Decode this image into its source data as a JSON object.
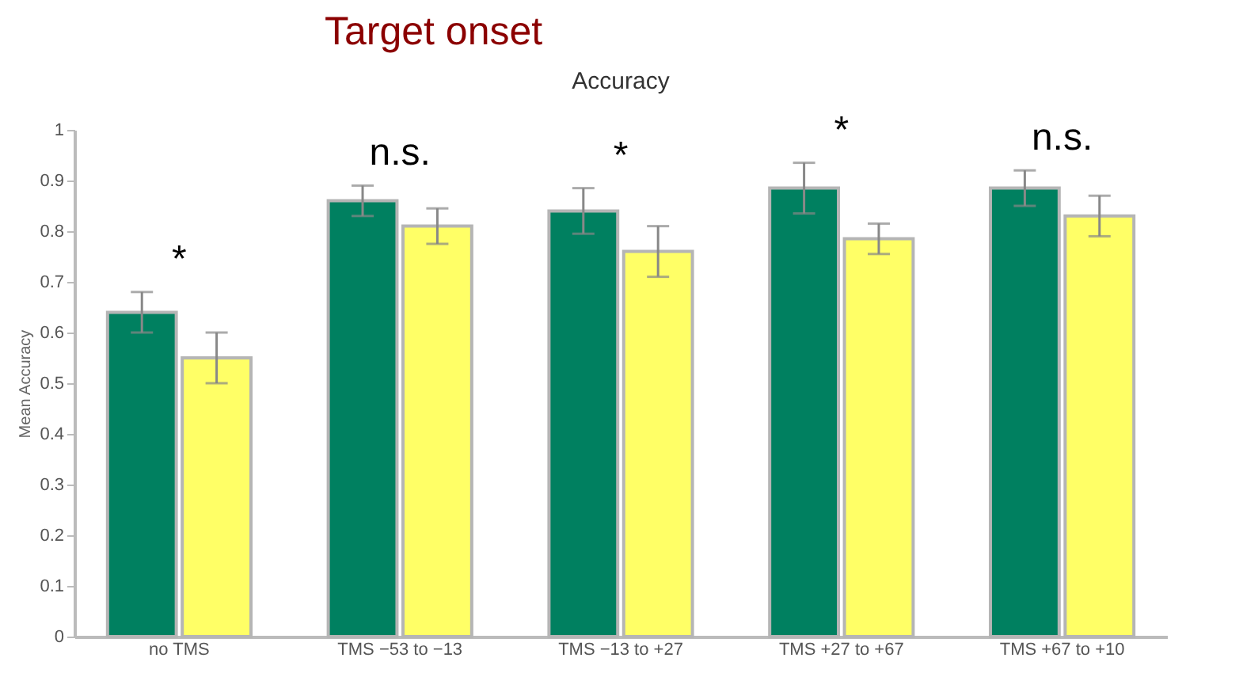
{
  "chart_data": {
    "type": "bar",
    "title": "Target onset",
    "subtitle": "Accuracy",
    "ylabel": "Mean Accuracy",
    "categories": [
      "no TMS",
      "TMS −53 to −13",
      "TMS −13 to +27",
      "TMS +27 to +67",
      "TMS +67 to +10"
    ],
    "series": [
      {
        "color": "#008060",
        "values": [
          0.64,
          0.86,
          0.84,
          0.885,
          0.885
        ],
        "errors": [
          0.04,
          0.03,
          0.045,
          0.05,
          0.035
        ]
      },
      {
        "color": "#ffff66",
        "values": [
          0.55,
          0.81,
          0.76,
          0.785,
          0.83
        ],
        "errors": [
          0.05,
          0.035,
          0.05,
          0.03,
          0.04
        ]
      }
    ],
    "ylim": [
      0,
      1
    ],
    "yticks": [
      0,
      0.1,
      0.2,
      0.3,
      0.4,
      0.5,
      0.6,
      0.7,
      0.8,
      0.9,
      1
    ],
    "annotations": [
      "*",
      "n.s.",
      "*",
      "*",
      "n.s."
    ],
    "grid": false,
    "legend": false
  }
}
